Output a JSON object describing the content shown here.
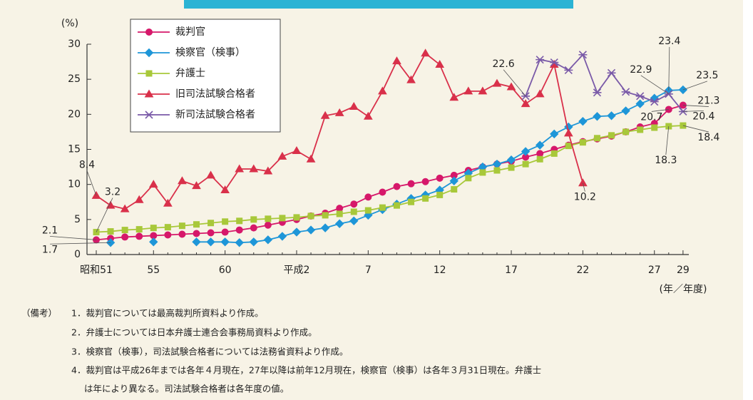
{
  "chart_data": {
    "type": "line",
    "y_label": "(%)",
    "x_label": "(年／年度)",
    "categories": [
      "昭和51",
      null,
      null,
      null,
      "55",
      null,
      null,
      null,
      null,
      "60",
      null,
      null,
      null,
      null,
      "平成2",
      null,
      null,
      null,
      null,
      "7",
      null,
      null,
      null,
      null,
      "12",
      null,
      null,
      null,
      null,
      "17",
      null,
      null,
      null,
      null,
      "22",
      null,
      null,
      null,
      null,
      "27",
      null,
      "29"
    ],
    "ylim": [
      0,
      30
    ],
    "yticks": [
      0,
      5,
      10,
      15,
      20,
      25,
      30
    ],
    "legend": "upper left",
    "grid": false,
    "series": [
      {
        "name": "裁判官",
        "color": "#d6186a",
        "marker": "circle",
        "values": [
          2.1,
          2.3,
          2.5,
          2.6,
          2.7,
          2.8,
          2.9,
          3.0,
          3.1,
          3.2,
          3.5,
          3.8,
          4.2,
          4.6,
          5.0,
          5.5,
          5.9,
          6.6,
          7.2,
          8.2,
          8.9,
          9.7,
          10.1,
          10.4,
          10.9,
          11.3,
          12.0,
          12.5,
          12.9,
          13.3,
          13.9,
          14.4,
          15.0,
          15.6,
          16.1,
          16.5,
          16.9,
          17.5,
          18.2,
          18.7,
          20.7,
          21.3
        ],
        "value_labels": [
          "2.1",
          null,
          null,
          null,
          null,
          null,
          null,
          null,
          null,
          null,
          null,
          null,
          null,
          null,
          null,
          null,
          null,
          null,
          null,
          null,
          null,
          null,
          null,
          null,
          null,
          null,
          null,
          null,
          null,
          null,
          null,
          null,
          null,
          null,
          null,
          null,
          null,
          null,
          null,
          null,
          "20.7",
          "21.3"
        ]
      },
      {
        "name": "検察官（検事）",
        "color": "#1e96d8",
        "marker": "diamond",
        "values": [
          null,
          1.7,
          null,
          null,
          1.8,
          null,
          null,
          1.8,
          1.8,
          1.8,
          1.7,
          1.8,
          2.1,
          2.6,
          3.2,
          3.5,
          3.8,
          4.4,
          4.8,
          5.6,
          6.4,
          7.2,
          8.0,
          8.5,
          9.2,
          10.5,
          11.6,
          12.5,
          12.9,
          13.5,
          14.7,
          15.6,
          17.2,
          18.2,
          19.0,
          19.7,
          19.8,
          20.5,
          21.5,
          22.3,
          23.4,
          23.5
        ],
        "value_labels": [
          null,
          "1.7",
          null,
          null,
          null,
          null,
          null,
          null,
          null,
          null,
          null,
          null,
          null,
          null,
          null,
          null,
          null,
          null,
          null,
          null,
          null,
          null,
          null,
          null,
          null,
          null,
          null,
          null,
          null,
          null,
          null,
          null,
          null,
          null,
          null,
          null,
          null,
          null,
          null,
          null,
          "23.4",
          "23.5"
        ]
      },
      {
        "name": "弁護士",
        "color": "#a8c83a",
        "marker": "square",
        "values": [
          3.2,
          3.3,
          3.5,
          3.6,
          3.8,
          3.9,
          4.1,
          4.3,
          4.5,
          4.7,
          4.8,
          5.0,
          5.1,
          5.2,
          5.3,
          5.5,
          5.6,
          5.8,
          6.1,
          6.3,
          6.7,
          7.0,
          7.5,
          8.0,
          8.5,
          9.3,
          10.9,
          11.7,
          12.0,
          12.4,
          12.9,
          13.6,
          14.4,
          15.5,
          16.0,
          16.6,
          17.0,
          17.5,
          17.8,
          18.1,
          18.3,
          18.4
        ],
        "value_labels": [
          "3.2",
          null,
          null,
          null,
          null,
          null,
          null,
          null,
          null,
          null,
          null,
          null,
          null,
          null,
          null,
          null,
          null,
          null,
          null,
          null,
          null,
          null,
          null,
          null,
          null,
          null,
          null,
          null,
          null,
          null,
          null,
          null,
          null,
          null,
          null,
          null,
          null,
          null,
          null,
          null,
          "18.3",
          "18.4"
        ]
      },
      {
        "name": "旧司法試験合格者",
        "color": "#d9304a",
        "marker": "triangle",
        "values": [
          8.4,
          7.0,
          6.5,
          7.8,
          10.0,
          7.3,
          10.5,
          9.8,
          11.3,
          9.2,
          12.2,
          12.2,
          11.9,
          14.0,
          14.8,
          13.6,
          19.8,
          20.2,
          21.1,
          19.7,
          23.3,
          27.6,
          24.9,
          28.7,
          27.1,
          22.4,
          23.3,
          23.3,
          24.4,
          23.9,
          21.5,
          22.9,
          27.1,
          17.3,
          10.2,
          null,
          null,
          null,
          null,
          null,
          null,
          null
        ],
        "value_labels": [
          "8.4",
          null,
          null,
          null,
          null,
          null,
          null,
          null,
          null,
          null,
          null,
          null,
          null,
          null,
          null,
          null,
          null,
          null,
          null,
          null,
          null,
          null,
          null,
          null,
          null,
          null,
          null,
          null,
          null,
          null,
          null,
          null,
          null,
          null,
          "10.2",
          null,
          null,
          null,
          null,
          null,
          null,
          null
        ]
      },
      {
        "name": "新司法試験合格者",
        "color": "#7a5aa8",
        "marker": "star",
        "values": [
          null,
          null,
          null,
          null,
          null,
          null,
          null,
          null,
          null,
          null,
          null,
          null,
          null,
          null,
          null,
          null,
          null,
          null,
          null,
          null,
          null,
          null,
          null,
          null,
          null,
          null,
          null,
          null,
          null,
          null,
          22.6,
          27.8,
          27.4,
          26.3,
          28.5,
          23.1,
          25.9,
          23.2,
          22.6,
          21.8,
          22.9,
          20.4
        ],
        "value_labels": [
          null,
          null,
          null,
          null,
          null,
          null,
          null,
          null,
          null,
          null,
          null,
          null,
          null,
          null,
          null,
          null,
          null,
          null,
          null,
          null,
          null,
          null,
          null,
          null,
          null,
          null,
          null,
          null,
          null,
          null,
          "22.6",
          null,
          null,
          null,
          null,
          null,
          null,
          null,
          null,
          null,
          "22.9",
          "20.4"
        ]
      }
    ]
  },
  "notes": {
    "label": "（備考）",
    "items": [
      "1．裁判官については最高裁判所資料より作成。",
      "2．弁護士については日本弁護士連合会事務局資料より作成。",
      "3．検察官（検事），司法試験合格者については法務省資料より作成。",
      "4．裁判官は平成26年までは各年４月現在，27年以降は前年12月現在，検察官（検事）は各年３月31日現在。弁護士",
      "は年により異なる。司法試験合格者は各年度の値。"
    ]
  }
}
